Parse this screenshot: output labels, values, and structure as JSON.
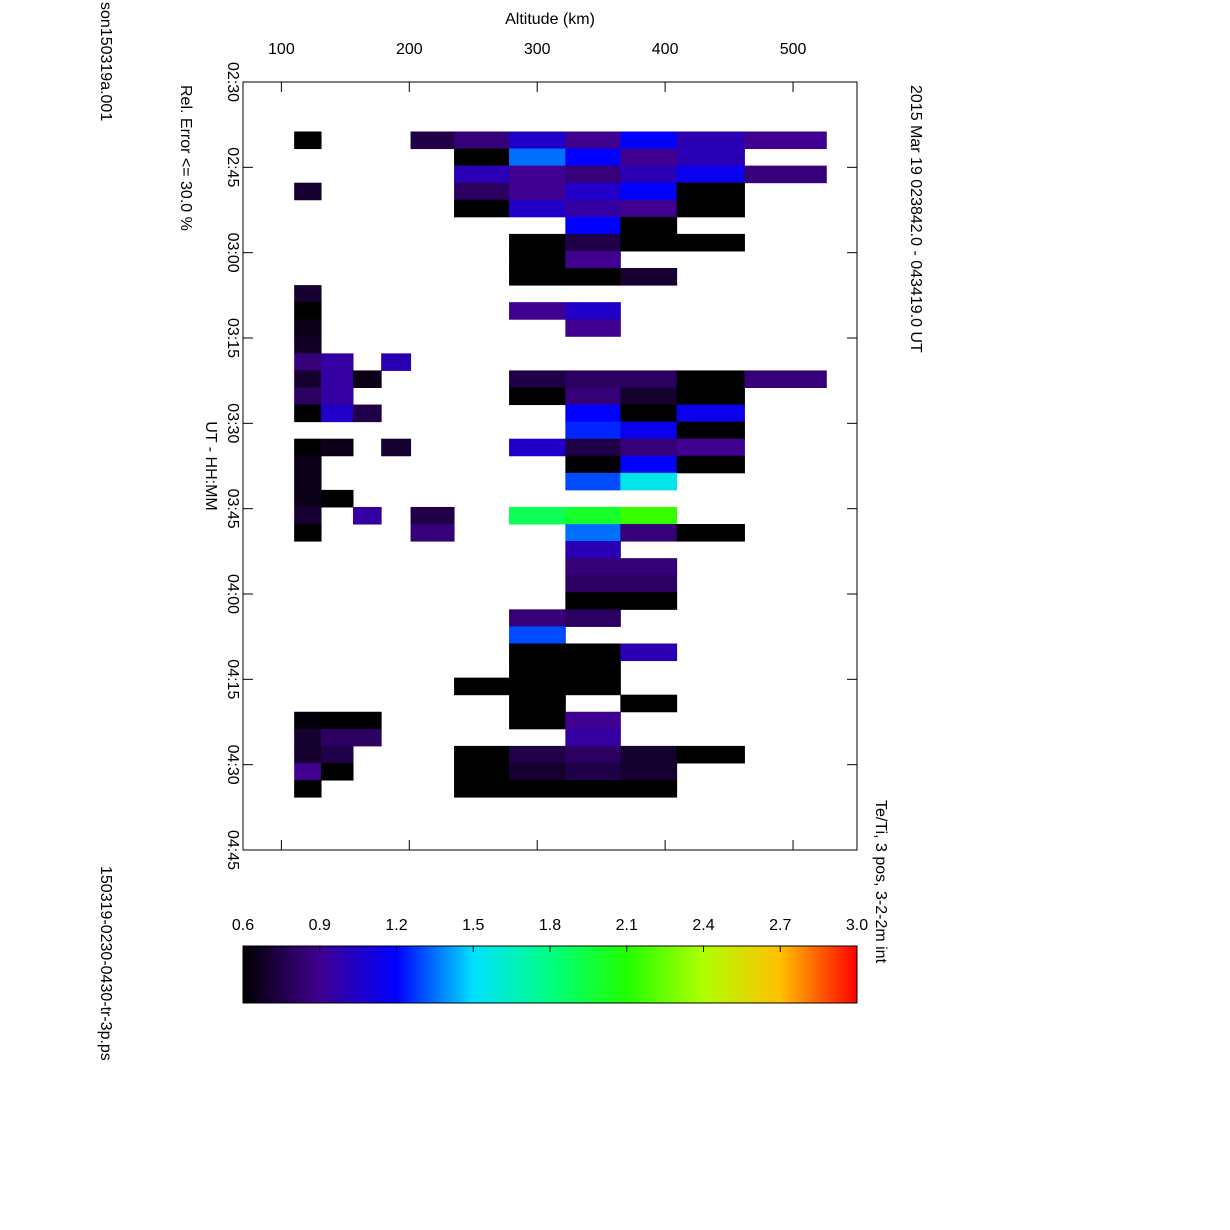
{
  "chart_data": {
    "type": "heatmap",
    "title": "2015 Mar 19    023842.0 - 043419.0 UT",
    "subtitle": "Te/Ti, 3 pos, 3-2-2m int",
    "annotation": "Rel. Error <= 30.0 %",
    "file_left": "son150319a.001",
    "file_right": "150319-0230-0430-tr-3p.ps",
    "xlabel": "UT - HH:MM",
    "ylabel": "Altitude (km)",
    "x": [
      2.645,
      2.695,
      2.745,
      2.795,
      2.845,
      2.895,
      2.945,
      2.995,
      3.045,
      3.095,
      3.145,
      3.195,
      3.245,
      3.295,
      3.345,
      3.395,
      3.445,
      3.495,
      3.545,
      3.595,
      3.645,
      3.695,
      3.745,
      3.795,
      3.845,
      3.895,
      3.945,
      3.995,
      4.045,
      4.095,
      4.145,
      4.195,
      4.245,
      4.295,
      4.345,
      4.395,
      4.445,
      4.495,
      4.545,
      4.595
    ],
    "y": [
      110,
      131,
      156,
      178,
      201,
      235,
      278,
      322,
      365,
      409,
      462,
      526
    ],
    "z": [
      [
        0.6,
        null,
        null,
        null,
        0.75,
        0.85,
        1.05,
        0.9,
        1.2,
        1.0,
        0.9
      ],
      [
        null,
        null,
        null,
        null,
        null,
        0.6,
        1.35,
        1.2,
        0.9,
        1.0,
        null
      ],
      [
        null,
        null,
        null,
        null,
        null,
        1.0,
        0.9,
        0.85,
        1.0,
        1.15,
        0.85
      ],
      [
        0.7,
        null,
        null,
        null,
        null,
        0.8,
        0.9,
        1.05,
        1.2,
        0.6,
        null
      ],
      [
        null,
        null,
        null,
        null,
        null,
        0.6,
        1.05,
        0.95,
        0.9,
        0.6,
        null
      ],
      [
        null,
        null,
        null,
        null,
        null,
        null,
        null,
        1.2,
        0.6,
        null,
        null
      ],
      [
        null,
        null,
        null,
        null,
        null,
        null,
        0.6,
        0.75,
        0.6,
        0.6,
        null
      ],
      [
        null,
        null,
        null,
        null,
        null,
        null,
        0.6,
        0.9,
        null,
        null,
        null
      ],
      [
        null,
        null,
        null,
        null,
        null,
        null,
        0.6,
        0.6,
        0.7,
        null,
        null
      ],
      [
        0.7,
        null,
        null,
        null,
        null,
        null,
        null,
        null,
        null,
        null,
        null
      ],
      [
        0.6,
        null,
        null,
        null,
        null,
        null,
        0.9,
        1.05,
        null,
        null,
        null
      ],
      [
        0.65,
        null,
        null,
        null,
        null,
        null,
        null,
        0.9,
        null,
        null,
        null
      ],
      [
        0.68,
        null,
        null,
        null,
        null,
        null,
        null,
        null,
        null,
        null,
        null
      ],
      [
        0.85,
        0.95,
        null,
        1.0,
        null,
        null,
        null,
        null,
        null,
        null,
        null
      ],
      [
        0.7,
        0.95,
        0.65,
        null,
        null,
        null,
        0.75,
        0.8,
        0.8,
        0.6,
        0.85
      ],
      [
        0.8,
        0.95,
        null,
        null,
        null,
        null,
        0.6,
        0.85,
        0.7,
        0.6,
        null
      ],
      [
        0.6,
        1.05,
        0.75,
        null,
        null,
        null,
        null,
        1.2,
        0.6,
        1.15,
        null
      ],
      [
        null,
        null,
        null,
        null,
        null,
        null,
        null,
        1.25,
        1.15,
        0.6,
        null
      ],
      [
        0.6,
        0.65,
        null,
        0.7,
        null,
        null,
        1.05,
        0.75,
        0.85,
        0.9,
        null
      ],
      [
        0.65,
        null,
        null,
        null,
        null,
        null,
        null,
        0.6,
        1.2,
        0.6,
        null
      ],
      [
        0.65,
        null,
        null,
        null,
        null,
        null,
        null,
        1.3,
        1.55,
        null,
        null
      ],
      [
        0.65,
        0.6,
        null,
        null,
        null,
        null,
        null,
        null,
        null,
        null,
        null
      ],
      [
        0.7,
        null,
        0.95,
        null,
        0.75,
        null,
        1.9,
        2.0,
        2.15,
        null,
        null
      ],
      [
        0.6,
        null,
        null,
        null,
        0.85,
        null,
        null,
        1.35,
        0.85,
        0.6,
        null
      ],
      [
        null,
        null,
        null,
        null,
        null,
        null,
        null,
        1.0,
        null,
        null,
        null
      ],
      [
        null,
        null,
        null,
        null,
        null,
        null,
        null,
        0.85,
        0.85,
        null,
        null
      ],
      [
        null,
        null,
        null,
        null,
        null,
        null,
        null,
        0.8,
        0.8,
        null,
        null
      ],
      [
        null,
        null,
        null,
        null,
        null,
        null,
        null,
        0.6,
        0.6,
        null,
        null
      ],
      [
        null,
        null,
        null,
        null,
        null,
        null,
        0.85,
        0.8,
        null,
        null,
        null
      ],
      [
        null,
        null,
        null,
        null,
        null,
        null,
        1.3,
        null,
        null,
        null,
        null
      ],
      [
        null,
        null,
        null,
        null,
        null,
        null,
        0.6,
        0.6,
        1.0,
        null,
        null
      ],
      [
        null,
        null,
        null,
        null,
        null,
        null,
        0.6,
        0.6,
        null,
        null,
        null
      ],
      [
        null,
        null,
        null,
        null,
        null,
        0.6,
        0.6,
        0.6,
        null,
        null,
        null
      ],
      [
        null,
        null,
        null,
        null,
        null,
        null,
        0.6,
        null,
        0.6,
        null,
        null
      ],
      [
        0.62,
        0.6,
        0.6,
        null,
        null,
        null,
        0.6,
        0.9,
        null,
        null,
        null
      ],
      [
        0.7,
        0.8,
        0.8,
        null,
        null,
        null,
        null,
        0.95,
        null,
        null,
        null
      ],
      [
        0.7,
        0.75,
        null,
        null,
        null,
        0.6,
        0.75,
        0.8,
        0.7,
        0.6,
        null
      ],
      [
        0.9,
        0.6,
        null,
        null,
        null,
        0.6,
        0.7,
        0.75,
        0.7,
        null,
        null
      ],
      [
        0.6,
        null,
        null,
        null,
        null,
        0.6,
        0.6,
        0.6,
        0.6,
        null,
        null
      ]
    ],
    "xlim": [
      2.5,
      4.75
    ],
    "xticks": [
      {
        "value": 2.5,
        "label": "02:30"
      },
      {
        "value": 2.75,
        "label": "02:45"
      },
      {
        "value": 3,
        "label": "03:00"
      },
      {
        "value": 3.25,
        "label": "03:15"
      },
      {
        "value": 3.5,
        "label": "03:30"
      },
      {
        "value": 3.75,
        "label": "03:45"
      },
      {
        "value": 4,
        "label": "04:00"
      },
      {
        "value": 4.25,
        "label": "04:15"
      },
      {
        "value": 4.5,
        "label": "04:30"
      },
      {
        "value": 4.75,
        "label": "04:45"
      }
    ],
    "ylim": [
      70,
      550
    ],
    "yticks": [
      100,
      200,
      300,
      400,
      500
    ],
    "zlim": [
      0.6,
      3.0
    ],
    "zticks": [
      0.6,
      0.9,
      1.2,
      1.5,
      1.8,
      2.1,
      2.4,
      2.7,
      {
        "value": 3,
        "label": "3.0"
      }
    ],
    "colorscale": [
      "#000000",
      "#400090",
      "#0000ff",
      "#00e0ff",
      "#00ff80",
      "#20ff00",
      "#b0ff00",
      "#ffc000",
      "#ff0000"
    ]
  }
}
